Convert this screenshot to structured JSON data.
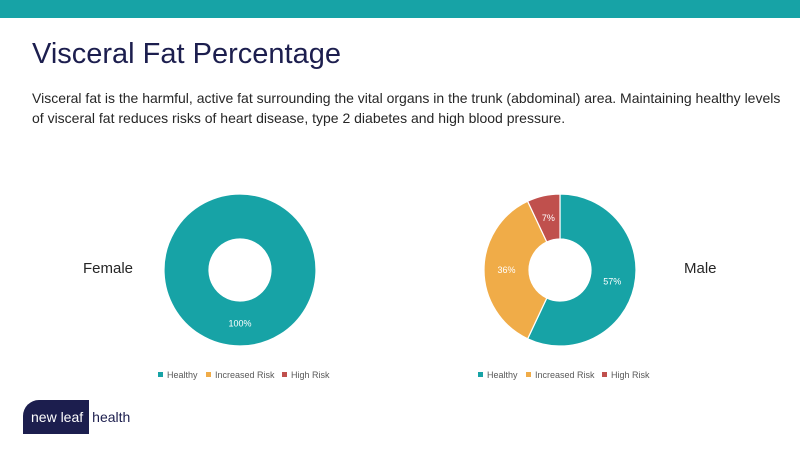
{
  "header": {
    "title": "Visceral Fat Percentage",
    "description_line1": "Visceral fat is the harmful, active fat surrounding the vital organs in the trunk (abdominal) area. Maintaining healthy levels",
    "description_line2": "of visceral fat reduces risks of heart disease, type 2 diabetes and high blood pressure."
  },
  "colors": {
    "accent_bar": "#17A3A6",
    "healthy": "#17A3A6",
    "increased_risk": "#F0AC48",
    "high_risk": "#C0504D",
    "title": "#1C1E4E"
  },
  "chart_data": [
    {
      "type": "pie",
      "subtype": "donut",
      "title": "Female",
      "legend": [
        "Healthy",
        "Increased Risk",
        "High Risk"
      ],
      "legend_position": "bottom",
      "categories": [
        "Healthy",
        "Increased Risk",
        "High Risk"
      ],
      "values": [
        100,
        0,
        0
      ],
      "labels": [
        "100%",
        "",
        ""
      ]
    },
    {
      "type": "pie",
      "subtype": "donut",
      "title": "Male",
      "legend": [
        "Healthy",
        "Increased Risk",
        "High Risk"
      ],
      "legend_position": "bottom",
      "categories": [
        "Healthy",
        "Increased Risk",
        "High Risk"
      ],
      "values": [
        57,
        36,
        7
      ],
      "labels": [
        "57%",
        "36%",
        "7%"
      ]
    }
  ],
  "logo": {
    "part1": "new leaf",
    "part2": "health"
  }
}
